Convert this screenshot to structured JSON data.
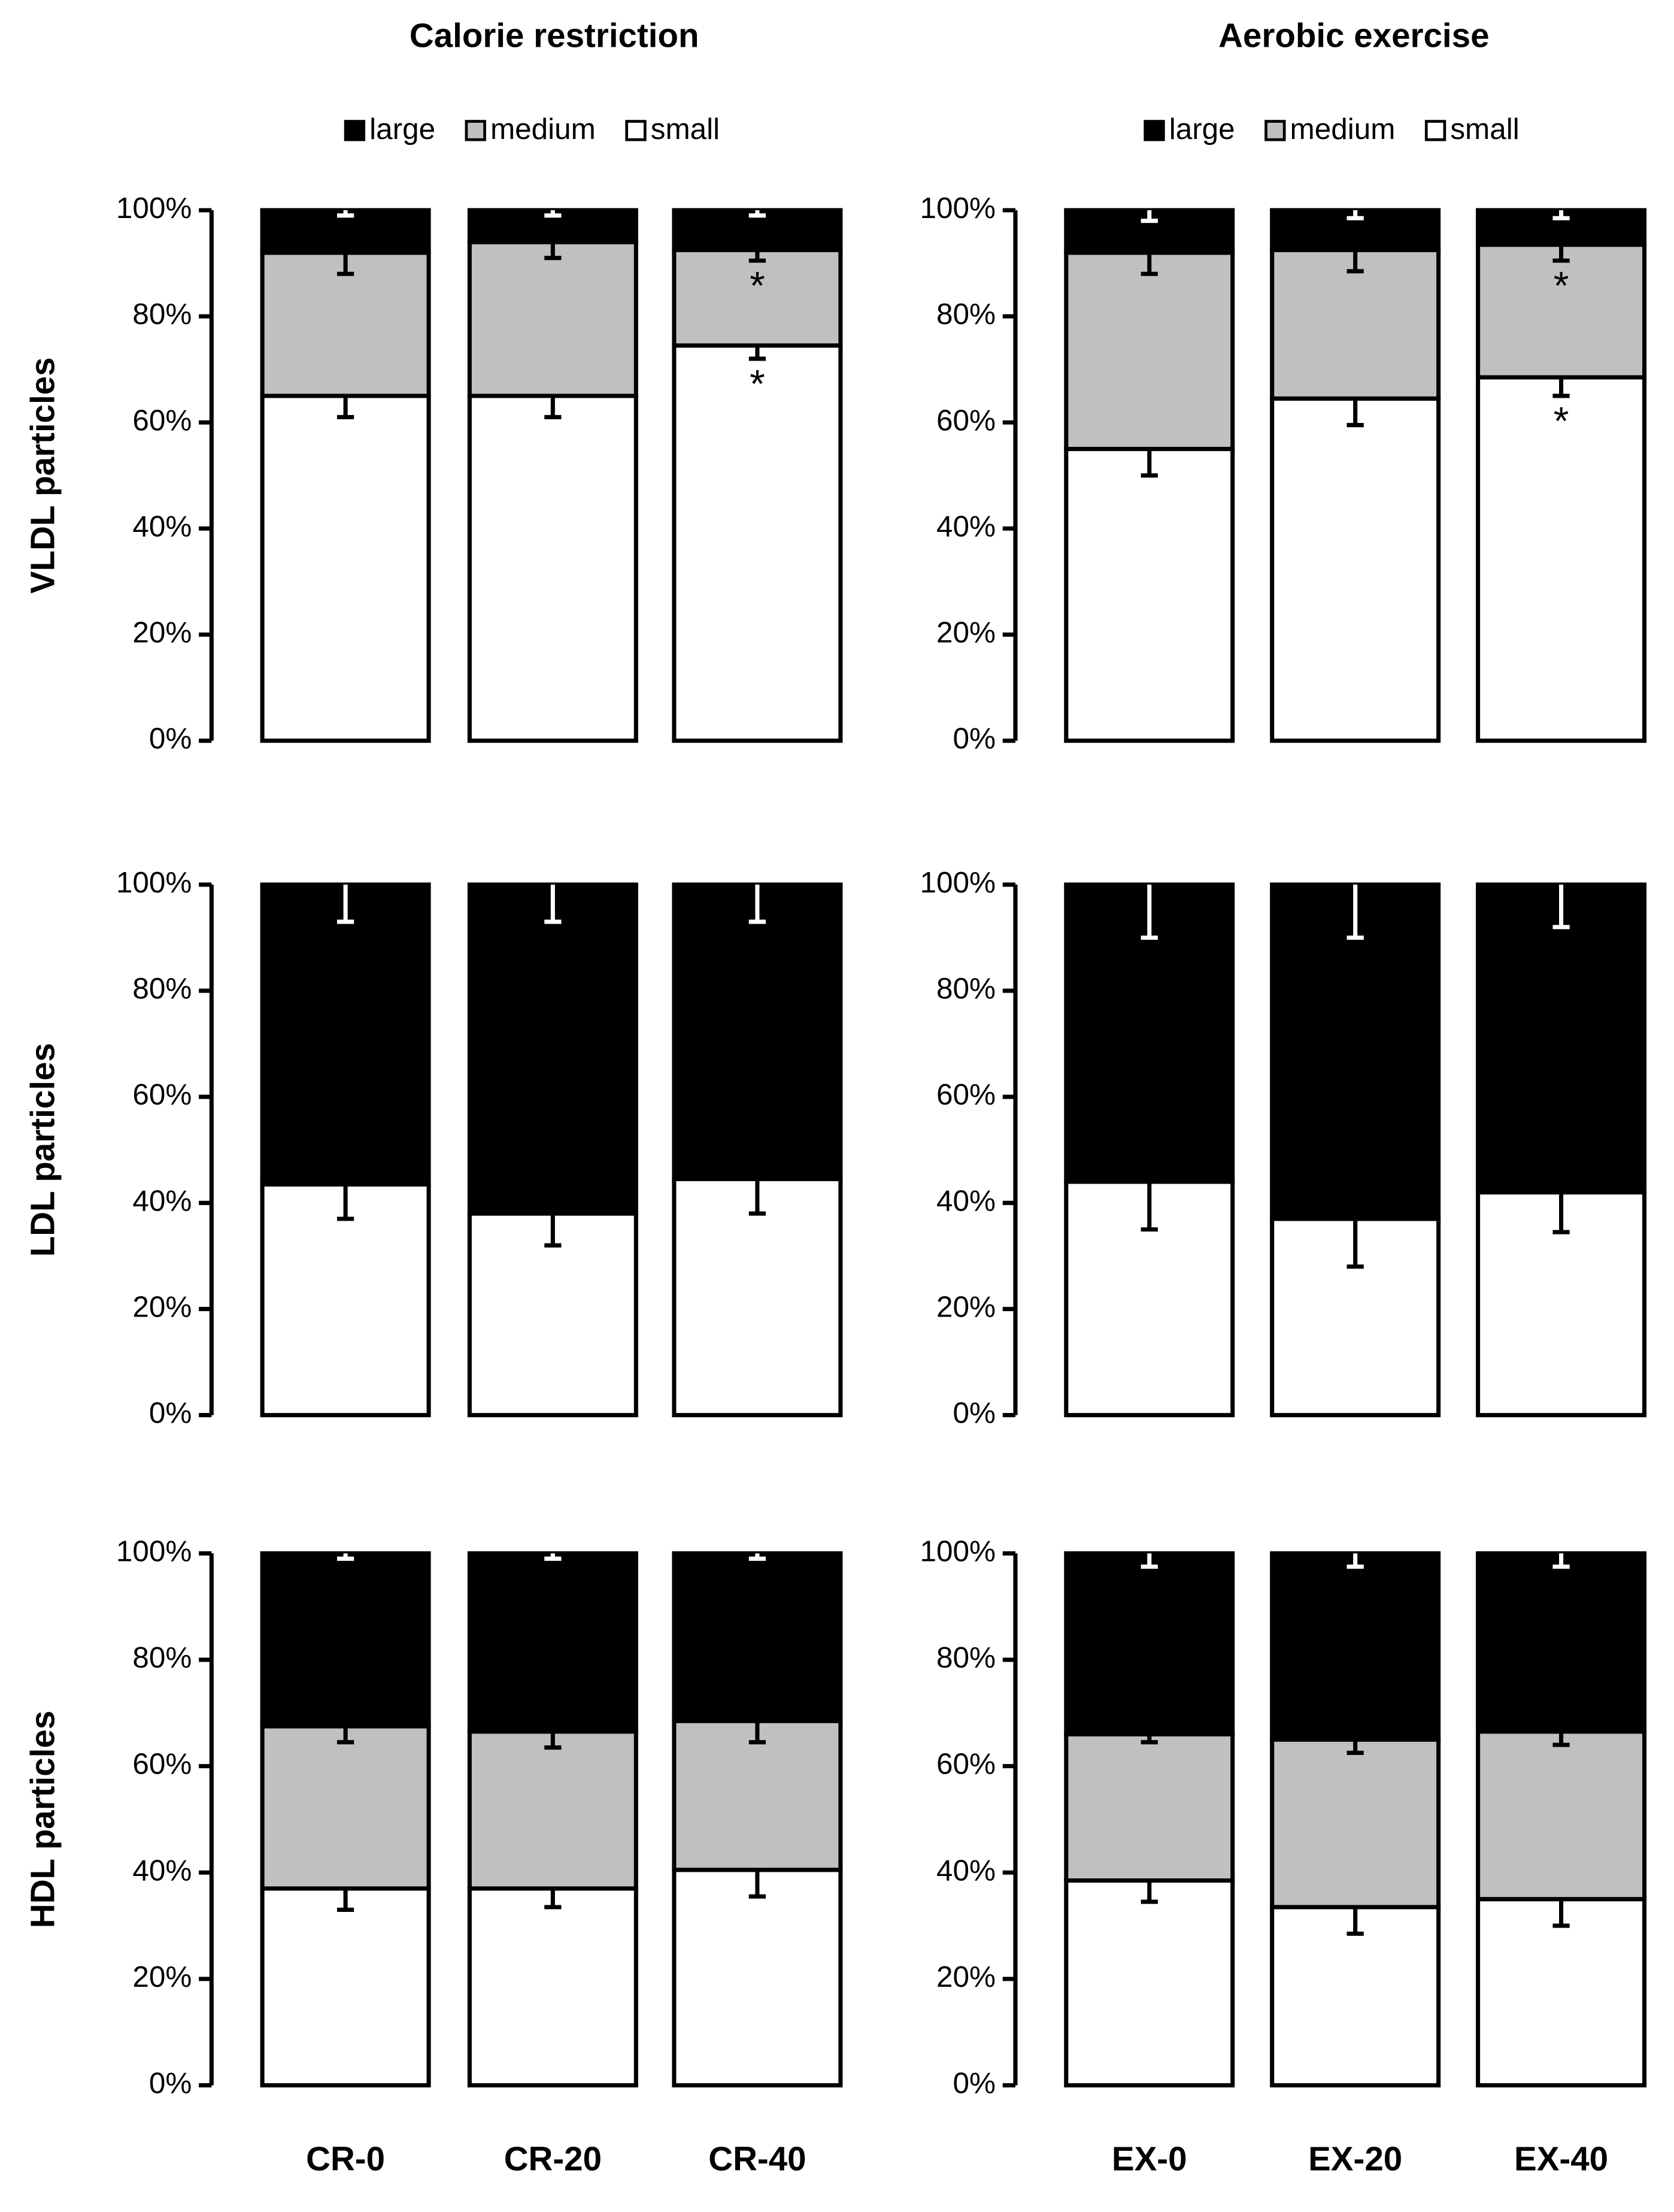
{
  "chart_data": [
    {
      "type": "bar",
      "stacked": true,
      "title": "Calorie restriction",
      "ylabel": "VLDL particles",
      "legend": true,
      "categories": [
        null,
        null,
        null
      ],
      "ylim": [
        0,
        100
      ],
      "yticks": [
        {
          "value": 0,
          "label": "0%"
        },
        {
          "value": 20,
          "label": "20%"
        },
        {
          "value": 40,
          "label": "40%"
        },
        {
          "value": 60,
          "label": "60%"
        },
        {
          "value": 80,
          "label": "80%"
        },
        {
          "value": 100,
          "label": "100%"
        }
      ],
      "series": [
        {
          "name": "large",
          "color": "#000000",
          "error_color": "#ffffff",
          "values": [
            8,
            6,
            7.5
          ],
          "errors": [
            1,
            1,
            1
          ]
        },
        {
          "name": "medium",
          "color": "#c0c0c0",
          "error_color": "#000000",
          "values": [
            27,
            29,
            18
          ],
          "errors": [
            4,
            3,
            2
          ],
          "markers": [
            null,
            null,
            "*"
          ]
        },
        {
          "name": "small",
          "color": "#ffffff",
          "error_color": "#000000",
          "values": [
            65,
            65,
            74.5
          ],
          "errors": [
            4,
            4,
            2.5
          ],
          "markers": [
            null,
            null,
            "*"
          ]
        }
      ]
    },
    {
      "type": "bar",
      "stacked": true,
      "title": "Aerobic exercise",
      "legend": true,
      "categories": [
        null,
        null,
        null
      ],
      "ylim": [
        0,
        100
      ],
      "yticks": [
        {
          "value": 0,
          "label": "0%"
        },
        {
          "value": 20,
          "label": "20%"
        },
        {
          "value": 40,
          "label": "40%"
        },
        {
          "value": 60,
          "label": "60%"
        },
        {
          "value": 80,
          "label": "80%"
        },
        {
          "value": 100,
          "label": "100%"
        }
      ],
      "series": [
        {
          "name": "large",
          "color": "#000000",
          "error_color": "#ffffff",
          "values": [
            8,
            7.5,
            6.5
          ],
          "errors": [
            2,
            1.5,
            1.5
          ]
        },
        {
          "name": "medium",
          "color": "#c0c0c0",
          "error_color": "#000000",
          "values": [
            37,
            28,
            25
          ],
          "errors": [
            4,
            4,
            3
          ],
          "markers": [
            null,
            null,
            "*"
          ]
        },
        {
          "name": "small",
          "color": "#ffffff",
          "error_color": "#000000",
          "values": [
            55,
            64.5,
            68.5
          ],
          "errors": [
            5,
            5,
            3.5
          ],
          "markers": [
            null,
            null,
            "*"
          ]
        }
      ]
    },
    {
      "type": "bar",
      "stacked": true,
      "ylabel": "LDL particles",
      "categories": [
        null,
        null,
        null
      ],
      "ylim": [
        0,
        100
      ],
      "yticks": [
        {
          "value": 0,
          "label": "0%"
        },
        {
          "value": 20,
          "label": "20%"
        },
        {
          "value": 40,
          "label": "40%"
        },
        {
          "value": 60,
          "label": "60%"
        },
        {
          "value": 80,
          "label": "80%"
        },
        {
          "value": 100,
          "label": "100%"
        }
      ],
      "series": [
        {
          "color": "#000000",
          "error_color": "#ffffff",
          "values": [
            56.5,
            62,
            55.5
          ],
          "errors": [
            7,
            7,
            7
          ]
        },
        {
          "color": "#ffffff",
          "error_color": "#000000",
          "values": [
            43.5,
            38,
            44.5
          ],
          "errors": [
            6.5,
            6,
            6.5
          ]
        }
      ]
    },
    {
      "type": "bar",
      "stacked": true,
      "categories": [
        null,
        null,
        null
      ],
      "ylim": [
        0,
        100
      ],
      "yticks": [
        {
          "value": 0,
          "label": "0%"
        },
        {
          "value": 20,
          "label": "20%"
        },
        {
          "value": 40,
          "label": "40%"
        },
        {
          "value": 60,
          "label": "60%"
        },
        {
          "value": 80,
          "label": "80%"
        },
        {
          "value": 100,
          "label": "100%"
        }
      ],
      "series": [
        {
          "color": "#000000",
          "error_color": "#ffffff",
          "values": [
            56,
            63,
            58
          ],
          "errors": [
            10,
            10,
            8
          ]
        },
        {
          "color": "#ffffff",
          "error_color": "#000000",
          "values": [
            44,
            37,
            42
          ],
          "errors": [
            9,
            9,
            7.5
          ]
        }
      ]
    },
    {
      "type": "bar",
      "stacked": true,
      "ylabel": "HDL particles",
      "categories": [
        "CR-0",
        "CR-20",
        "CR-40"
      ],
      "ylim": [
        0,
        100
      ],
      "yticks": [
        {
          "value": 0,
          "label": "0%"
        },
        {
          "value": 20,
          "label": "20%"
        },
        {
          "value": 40,
          "label": "40%"
        },
        {
          "value": 60,
          "label": "60%"
        },
        {
          "value": 80,
          "label": "80%"
        },
        {
          "value": 100,
          "label": "100%"
        }
      ],
      "series": [
        {
          "color": "#000000",
          "error_color": "#ffffff",
          "values": [
            32.5,
            33.5,
            31.5
          ],
          "errors": [
            1,
            1,
            1
          ]
        },
        {
          "color": "#c0c0c0",
          "error_color": "#000000",
          "values": [
            30.5,
            29.5,
            28
          ],
          "errors": [
            3,
            3,
            4
          ]
        },
        {
          "color": "#ffffff",
          "error_color": "#000000",
          "values": [
            37,
            37,
            40.5
          ],
          "errors": [
            4,
            3.5,
            5
          ]
        }
      ]
    },
    {
      "type": "bar",
      "stacked": true,
      "categories": [
        "EX-0",
        "EX-20",
        "EX-40"
      ],
      "ylim": [
        0,
        100
      ],
      "yticks": [
        {
          "value": 0,
          "label": "0%"
        },
        {
          "value": 20,
          "label": "20%"
        },
        {
          "value": 40,
          "label": "40%"
        },
        {
          "value": 60,
          "label": "60%"
        },
        {
          "value": 80,
          "label": "80%"
        },
        {
          "value": 100,
          "label": "100%"
        }
      ],
      "series": [
        {
          "color": "#000000",
          "error_color": "#ffffff",
          "values": [
            34,
            35,
            33.5
          ],
          "errors": [
            2.5,
            2.5,
            2.5
          ]
        },
        {
          "color": "#c0c0c0",
          "error_color": "#000000",
          "values": [
            27.5,
            31.5,
            31.5
          ],
          "errors": [
            1.5,
            2.5,
            2.5
          ]
        },
        {
          "color": "#ffffff",
          "error_color": "#000000",
          "values": [
            38.5,
            33.5,
            35
          ],
          "errors": [
            4,
            5,
            5
          ]
        }
      ]
    }
  ]
}
